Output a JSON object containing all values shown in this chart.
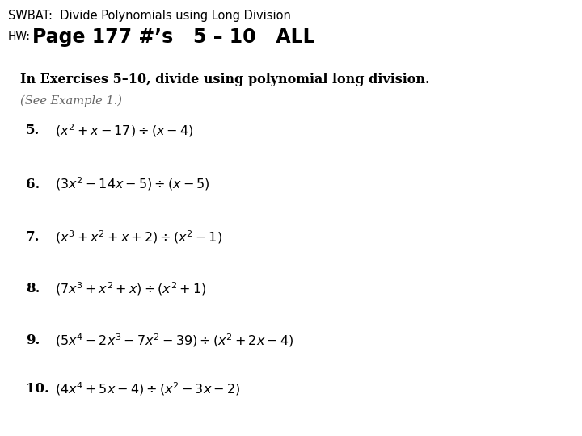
{
  "background_color": "#ffffff",
  "title_line1": "SWBAT:  Divide Polynomials using Long Division",
  "title_line1_fontsize": 10.5,
  "hw_label": "HW:",
  "hw_text": "Page 177 #’s   5 – 10   ALL",
  "hw_text_fontsize": 17,
  "hw_label_fontsize": 10,
  "section_header": "In Exercises 5–10, divide using polynomial long division.",
  "section_header_fontsize": 11.5,
  "see_example": "(See Example 1.)",
  "see_example_fontsize": 10.5,
  "problems": [
    {
      "number": "5.",
      "expr": "$(x^2 + x - 17) \\div (x - 4)$"
    },
    {
      "number": "6.",
      "expr": "$(3x^2 - 14x - 5) \\div (x - 5)$"
    },
    {
      "number": "7.",
      "expr": "$(x^3 + x^2 + x + 2) \\div (x^2 - 1)$"
    },
    {
      "number": "8.",
      "expr": "$(7x^3 + x^2 + x) \\div (x^2 + 1)$"
    },
    {
      "number": "9.",
      "expr": "$(5x^4 - 2x^3 - 7x^2 - 39) \\div (x^2 + 2x - 4)$"
    },
    {
      "number": "10.",
      "expr": "$(4x^4 + 5x - 4) \\div (x^2 - 3x - 2)$"
    }
  ],
  "number_fontsize": 12,
  "expr_fontsize": 11.5,
  "gray_color": "#666666"
}
